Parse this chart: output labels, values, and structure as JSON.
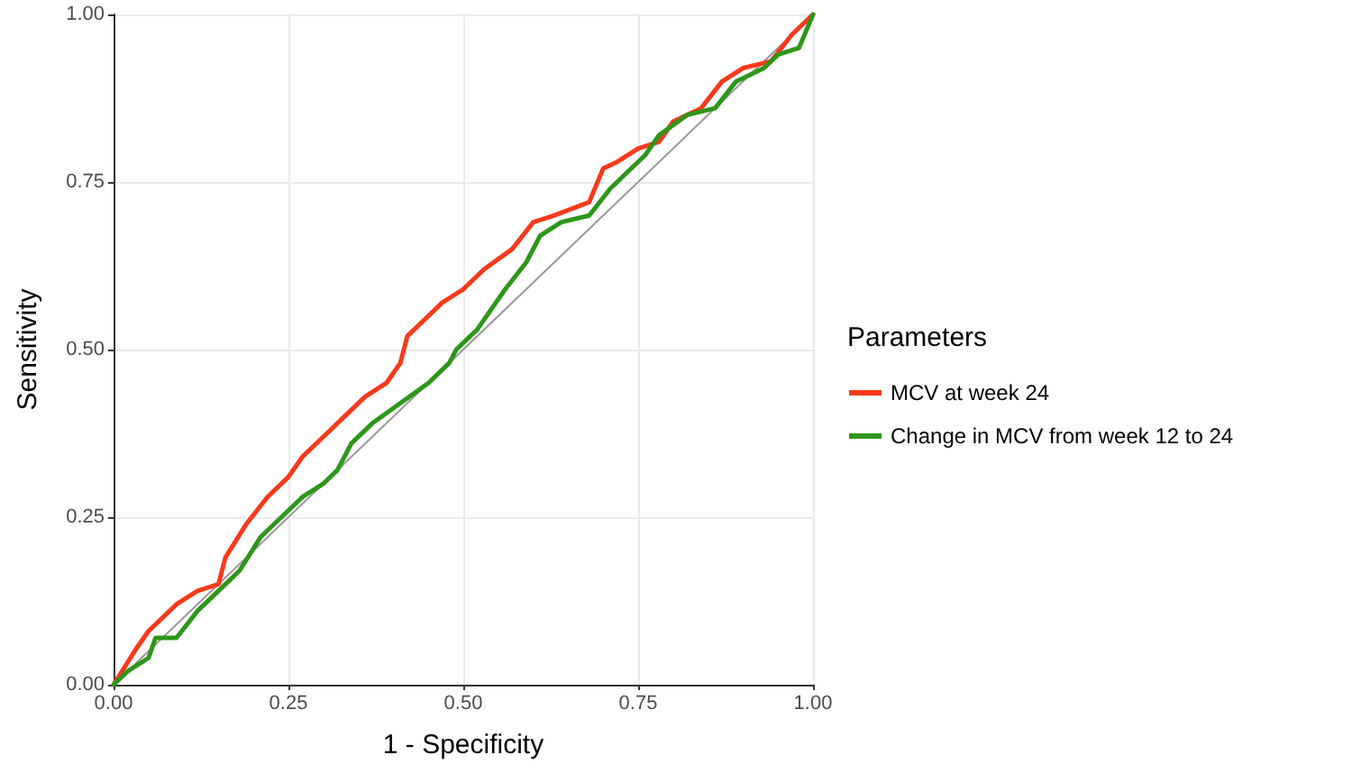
{
  "chart_data": {
    "type": "line",
    "xlabel": "1 - Specificity",
    "ylabel": "Sensitivity",
    "legend_title": "Parameters",
    "legend": "right",
    "grid": true,
    "marker": "none",
    "line_style": "solid",
    "xlim": [
      0,
      1
    ],
    "ylim": [
      0,
      1
    ],
    "xticks": [
      {
        "value": 0,
        "label": "0.00"
      },
      {
        "value": 0.25,
        "label": "0.25"
      },
      {
        "value": 0.5,
        "label": "0.50"
      },
      {
        "value": 0.75,
        "label": "0.75"
      },
      {
        "value": 1,
        "label": "1.00"
      }
    ],
    "yticks": [
      {
        "value": 0,
        "label": "0.00"
      },
      {
        "value": 0.25,
        "label": "0.25"
      },
      {
        "value": 0.5,
        "label": "0.50"
      },
      {
        "value": 0.75,
        "label": "0.75"
      },
      {
        "value": 1,
        "label": "1.00"
      }
    ],
    "series": [
      {
        "color": "#999999",
        "x": [
          0,
          1
        ],
        "values": [
          0,
          1
        ]
      },
      {
        "name": "MCV at week 24",
        "color": "#f8391c",
        "x": [
          0,
          0.03,
          0.05,
          0.07,
          0.09,
          0.12,
          0.15,
          0.16,
          0.19,
          0.22,
          0.25,
          0.27,
          0.3,
          0.33,
          0.36,
          0.39,
          0.41,
          0.42,
          0.45,
          0.47,
          0.5,
          0.53,
          0.57,
          0.6,
          0.63,
          0.68,
          0.7,
          0.72,
          0.75,
          0.78,
          0.8,
          0.84,
          0.87,
          0.9,
          0.94,
          0.97,
          1
        ],
        "values": [
          0,
          0.05,
          0.08,
          0.1,
          0.12,
          0.14,
          0.15,
          0.19,
          0.24,
          0.28,
          0.31,
          0.34,
          0.37,
          0.4,
          0.43,
          0.45,
          0.48,
          0.52,
          0.55,
          0.57,
          0.59,
          0.62,
          0.65,
          0.69,
          0.7,
          0.72,
          0.77,
          0.78,
          0.8,
          0.81,
          0.84,
          0.86,
          0.9,
          0.92,
          0.93,
          0.97,
          1
        ]
      },
      {
        "name": "Change in MCV from week 12 to 24",
        "color": "#2e961a",
        "x": [
          0,
          0.02,
          0.05,
          0.06,
          0.09,
          0.12,
          0.15,
          0.18,
          0.21,
          0.24,
          0.27,
          0.3,
          0.32,
          0.34,
          0.37,
          0.41,
          0.45,
          0.48,
          0.49,
          0.52,
          0.56,
          0.59,
          0.61,
          0.64,
          0.68,
          0.71,
          0.73,
          0.76,
          0.78,
          0.82,
          0.86,
          0.89,
          0.93,
          0.95,
          0.98,
          1
        ],
        "values": [
          0,
          0.02,
          0.04,
          0.07,
          0.07,
          0.11,
          0.14,
          0.17,
          0.22,
          0.25,
          0.28,
          0.3,
          0.32,
          0.36,
          0.39,
          0.42,
          0.45,
          0.48,
          0.5,
          0.53,
          0.59,
          0.63,
          0.67,
          0.69,
          0.7,
          0.74,
          0.76,
          0.79,
          0.82,
          0.85,
          0.86,
          0.9,
          0.92,
          0.94,
          0.95,
          1
        ]
      }
    ]
  }
}
